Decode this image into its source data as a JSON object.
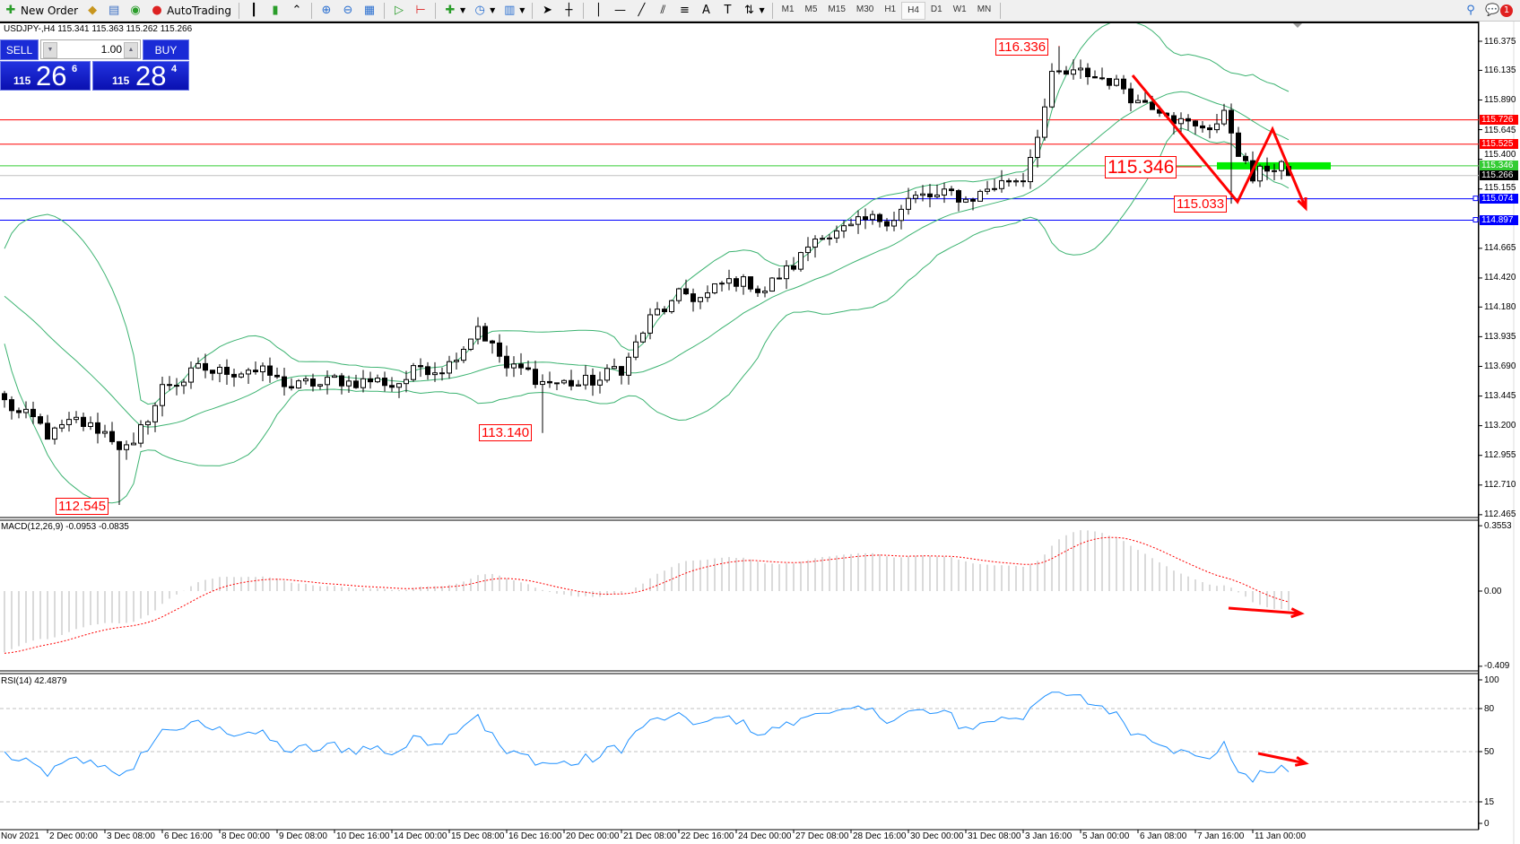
{
  "toolbar": {
    "new_order": "New Order",
    "autotrading": "AutoTrading",
    "timeframes": [
      "M1",
      "M5",
      "M15",
      "M30",
      "H1",
      "H4",
      "D1",
      "W1",
      "MN"
    ],
    "active_timeframe": "H4",
    "notification_count": "1"
  },
  "chart": {
    "title": "USDJPY-,H4  115.341 115.363 115.262 115.266",
    "one_click": {
      "sell_label": "SELL",
      "buy_label": "BUY",
      "lot": "1.00",
      "sell_big": "115",
      "sell_pips": "26",
      "sell_frac": "6",
      "buy_big": "115",
      "buy_pips": "28",
      "buy_frac": "4"
    },
    "last_bar": {
      "open": 115.341,
      "high": 115.363,
      "low": 115.262,
      "close": 115.266
    },
    "price_path": {
      "start": 113.39,
      "closes_sampled": [
        113.11,
        113.19,
        113.15,
        112.99,
        113.51,
        113.63,
        113.63,
        113.71,
        113.55,
        113.51,
        113.55,
        113.59,
        113.55,
        113.67,
        113.75,
        114.07,
        113.67,
        113.59,
        113.55,
        113.55,
        113.67,
        114.07,
        114.23,
        114.27,
        114.39,
        114.35,
        114.51,
        114.83,
        114.79,
        114.87,
        115.07,
        115.07,
        115.07,
        115.19,
        115.27,
        116.07,
        116.07,
        116.07,
        115.91,
        115.87,
        115.63,
        115.75,
        115.23,
        115.39
      ]
    },
    "extremes": {
      "low_1": 112.545,
      "low_2": 113.14,
      "high": 116.336,
      "low_3": 115.033
    },
    "annotations": {
      "high": "116.336",
      "low_1": "112.545",
      "low_2": "113.140",
      "level": "115.346",
      "low_3": "115.033"
    },
    "price_ticks": [
      "116.375",
      "116.135",
      "115.890",
      "115.645",
      "115.400",
      "115.155",
      "114.665",
      "114.420",
      "114.180",
      "113.935",
      "113.690",
      "113.445",
      "113.200",
      "112.955",
      "112.710",
      "112.465"
    ],
    "levels": [
      {
        "price": "115.726",
        "color": "#ff0000"
      },
      {
        "price": "115.525",
        "color": "#ff0000"
      },
      {
        "price": "115.346",
        "color": "#33cc33"
      },
      {
        "price": "115.266",
        "color": "#000000",
        "line": "#c0c0c0"
      },
      {
        "price": "115.074",
        "color": "#0000ff"
      },
      {
        "price": "114.897",
        "color": "#0000ff"
      }
    ],
    "colors": {
      "bollinger": "#3cb371",
      "rsi": "#1e90ff",
      "macd_hist": "#c0c0c0",
      "macd_signal": "#ff0000",
      "arrows": "#ff0000",
      "zone": "#00ee00"
    }
  },
  "macd": {
    "title": "MACD(12,26,9) -0.0953 -0.0835",
    "ticks": [
      "0.3553",
      "0.00",
      "-0.409"
    ]
  },
  "rsi": {
    "title": "RSI(14) 42.4879",
    "ticks": [
      "100",
      "80",
      "50",
      "15",
      "0"
    ]
  },
  "time_axis": [
    "Nov 2021",
    "2 Dec 00:00",
    "3 Dec 08:00",
    "6 Dec 16:00",
    "8 Dec 00:00",
    "9 Dec 08:00",
    "10 Dec 16:00",
    "14 Dec 00:00",
    "15 Dec 08:00",
    "16 Dec 16:00",
    "20 Dec 00:00",
    "21 Dec 08:00",
    "22 Dec 16:00",
    "24 Dec 00:00",
    "27 Dec 08:00",
    "28 Dec 16:00",
    "30 Dec 00:00",
    "31 Dec 08:00",
    "3 Jan 16:00",
    "5 Jan 00:00",
    "6 Jan 08:00",
    "7 Jan 16:00",
    "11 Jan 00:00"
  ]
}
